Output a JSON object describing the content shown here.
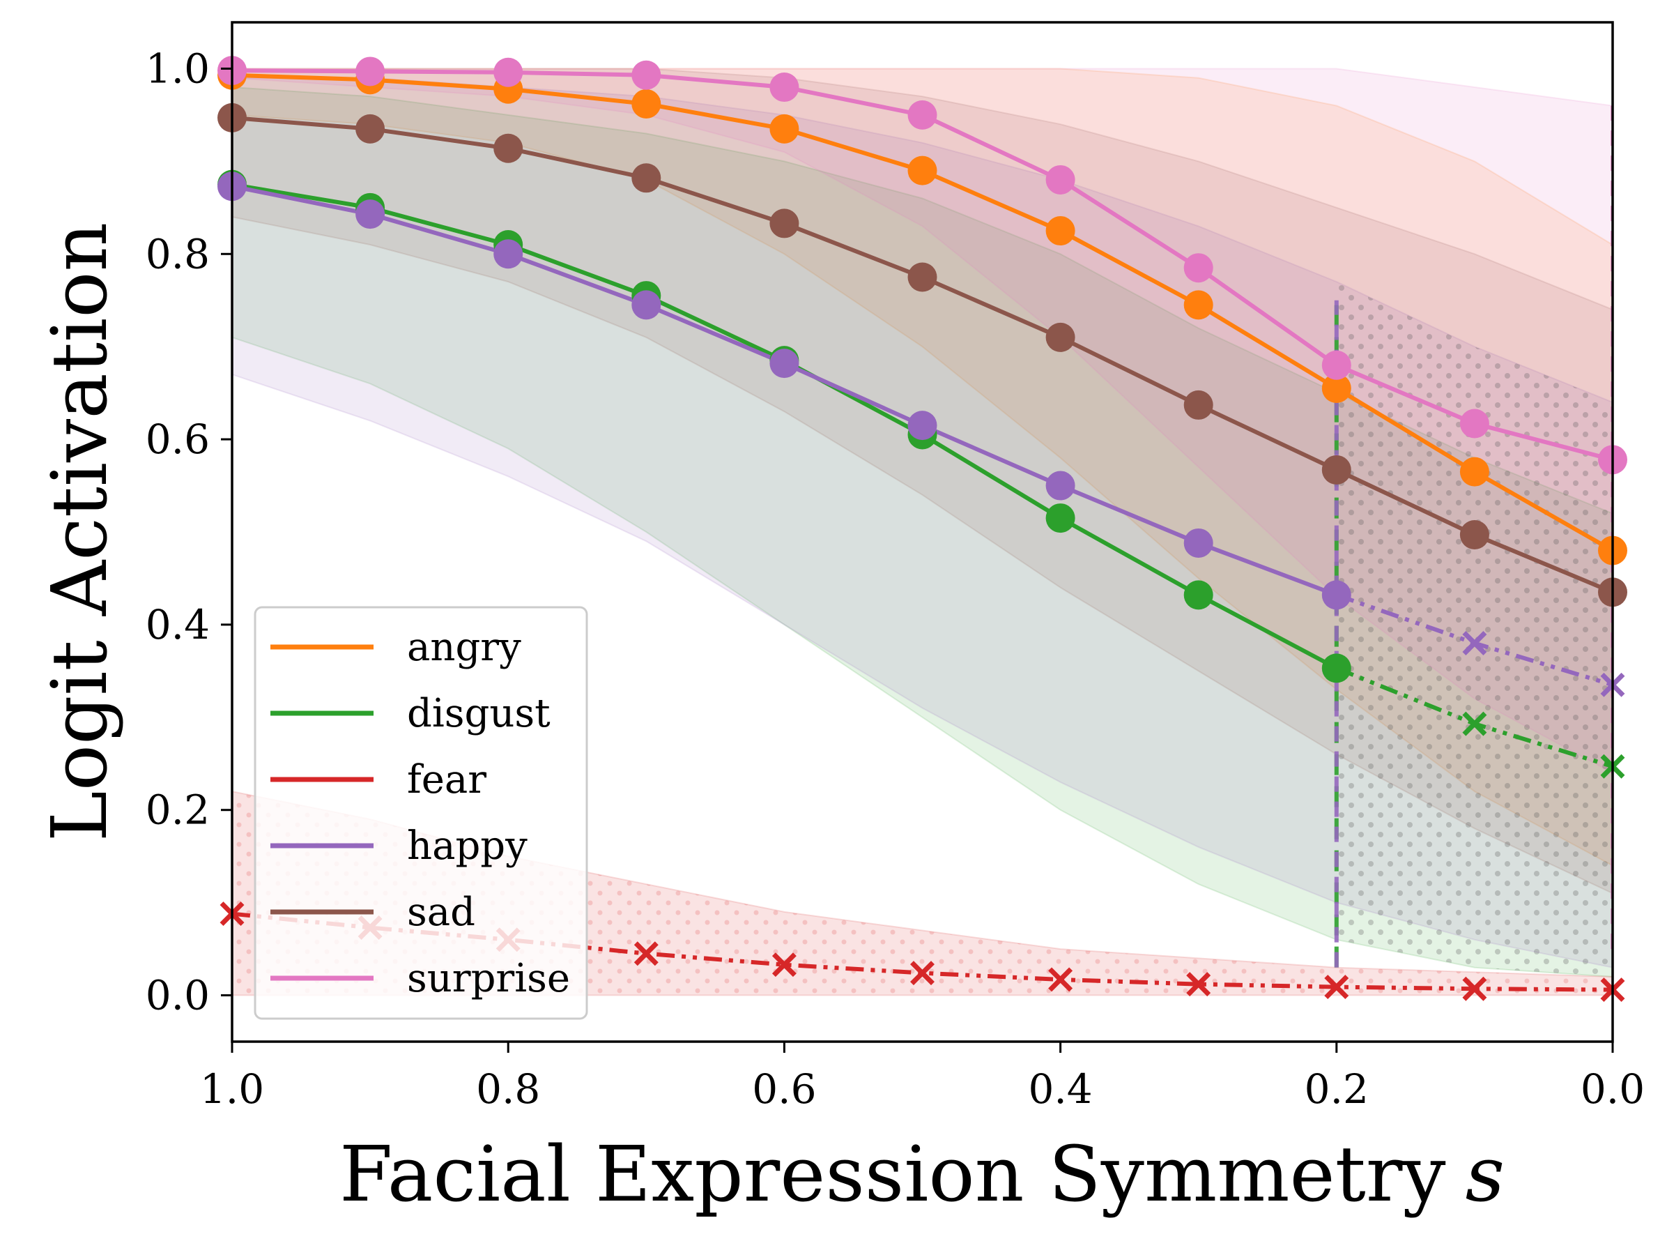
{
  "chart_data": {
    "type": "line",
    "title": "",
    "xlabel": "Facial Expression Symmetry",
    "xlabel_var": "s",
    "ylabel": "Logit Activation",
    "xlim": [
      1.0,
      0.0
    ],
    "ylim": [
      -0.05,
      1.05
    ],
    "x_inverted": true,
    "grid": false,
    "legend_position": "lower-left",
    "x": [
      1.0,
      0.9,
      0.8,
      0.7,
      0.6,
      0.5,
      0.4,
      0.3,
      0.2,
      0.1,
      0.0
    ],
    "x_ticks": [
      1.0,
      0.8,
      0.6,
      0.4,
      0.2,
      0.0
    ],
    "x_tick_labels": [
      "1.0",
      "0.8",
      "0.6",
      "0.4",
      "0.2",
      "0.0"
    ],
    "y_ticks": [
      0.0,
      0.2,
      0.4,
      0.6,
      0.8,
      1.0
    ],
    "y_tick_labels": [
      "0.0",
      "0.2",
      "0.4",
      "0.6",
      "0.8",
      "1.0"
    ],
    "series": [
      {
        "name": "angry",
        "color": "#ff7f0e",
        "values": [
          0.993,
          0.988,
          0.978,
          0.962,
          0.935,
          0.89,
          0.825,
          0.745,
          0.655,
          0.565,
          0.48
        ],
        "lower": [
          0.95,
          0.94,
          0.92,
          0.88,
          0.8,
          0.7,
          0.58,
          0.45,
          0.33,
          0.22,
          0.14
        ],
        "upper": [
          1.0,
          1.0,
          1.0,
          1.0,
          1.0,
          1.0,
          1.0,
          0.99,
          0.96,
          0.9,
          0.81
        ]
      },
      {
        "name": "disgust",
        "color": "#2ca02c",
        "values": [
          0.875,
          0.85,
          0.81,
          0.755,
          0.685,
          0.605,
          0.515,
          0.432,
          0.353,
          0.293,
          0.247
        ],
        "lower": [
          0.71,
          0.66,
          0.59,
          0.5,
          0.4,
          0.3,
          0.2,
          0.12,
          0.06,
          0.03,
          0.02
        ],
        "upper": [
          0.98,
          0.97,
          0.95,
          0.93,
          0.9,
          0.86,
          0.8,
          0.72,
          0.65,
          0.58,
          0.52
        ],
        "dashed_from_x": 0.2
      },
      {
        "name": "fear",
        "color": "#d62728",
        "values": [
          0.088,
          0.073,
          0.06,
          0.045,
          0.033,
          0.024,
          0.017,
          0.012,
          0.009,
          0.007,
          0.006
        ],
        "lower": [
          0.0,
          0.0,
          0.0,
          0.0,
          0.0,
          0.0,
          0.0,
          0.0,
          0.0,
          0.0,
          0.0
        ],
        "upper": [
          0.22,
          0.19,
          0.15,
          0.12,
          0.09,
          0.07,
          0.05,
          0.04,
          0.03,
          0.025,
          0.02
        ],
        "dashed_from_x": 1.0
      },
      {
        "name": "happy",
        "color": "#9467bd",
        "values": [
          0.873,
          0.843,
          0.8,
          0.745,
          0.682,
          0.615,
          0.55,
          0.488,
          0.432,
          0.38,
          0.335
        ],
        "lower": [
          0.67,
          0.62,
          0.56,
          0.49,
          0.4,
          0.31,
          0.23,
          0.16,
          0.1,
          0.06,
          0.03
        ],
        "upper": [
          0.99,
          0.99,
          0.98,
          0.97,
          0.95,
          0.92,
          0.88,
          0.83,
          0.77,
          0.7,
          0.64
        ],
        "dashed_from_x": 0.2
      },
      {
        "name": "sad",
        "color": "#8c564b",
        "values": [
          0.947,
          0.935,
          0.914,
          0.882,
          0.833,
          0.775,
          0.71,
          0.637,
          0.567,
          0.497,
          0.435
        ],
        "lower": [
          0.84,
          0.81,
          0.77,
          0.71,
          0.63,
          0.54,
          0.44,
          0.35,
          0.26,
          0.18,
          0.11
        ],
        "upper": [
          1.0,
          1.0,
          1.0,
          1.0,
          0.99,
          0.97,
          0.94,
          0.9,
          0.85,
          0.8,
          0.74
        ]
      },
      {
        "name": "surprise",
        "color": "#e377c2",
        "values": [
          0.998,
          0.997,
          0.996,
          0.993,
          0.98,
          0.95,
          0.88,
          0.785,
          0.68,
          0.617,
          0.578
        ],
        "lower": [
          0.99,
          0.98,
          0.97,
          0.95,
          0.91,
          0.83,
          0.71,
          0.57,
          0.43,
          0.32,
          0.24
        ],
        "upper": [
          1.0,
          1.0,
          1.0,
          1.0,
          1.0,
          1.0,
          1.0,
          1.0,
          1.0,
          0.98,
          0.96
        ]
      }
    ],
    "annotations": [
      {
        "type": "vertical-dashed-line",
        "x": 0.2,
        "y_range": [
          0.03,
          0.75
        ],
        "colors": [
          "#2ca02c",
          "#9467bd"
        ]
      },
      {
        "type": "dotted-hatch-region",
        "x_range": [
          0.2,
          0.0
        ],
        "description": "low symmetry region"
      }
    ]
  }
}
